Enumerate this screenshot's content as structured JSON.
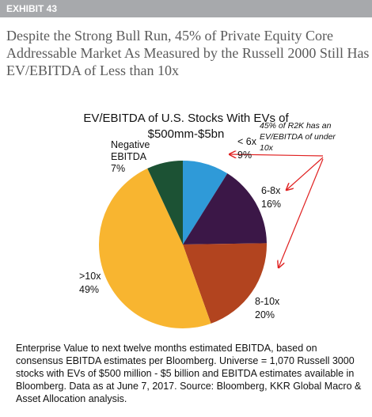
{
  "exhibit": "EXHIBIT 43",
  "headline": "Despite the Strong Bull Run, 45% of Private Equity Core Addressable Market As Measured by the Russell 2000 Still Has EV/EBITDA of Less than 10x",
  "chart_data": {
    "type": "pie",
    "title": "EV/EBITDA of U.S. Stocks With EVs of $500mm-$5bn",
    "categories": [
      "< 6x",
      "6-8x",
      "8-10x",
      ">10x",
      "Negative EBITDA"
    ],
    "values": [
      9,
      16,
      20,
      49,
      7
    ],
    "value_labels": [
      "9%",
      "16%",
      "20%",
      "49%",
      "7%"
    ],
    "colors": [
      "#2f9ad8",
      "#3b1747",
      "#b2441f",
      "#f8b530",
      "#1c5234"
    ],
    "annotation": "45% of R2K has an EV/EBITDA of under 10x"
  },
  "footnote": "Enterprise Value to next twelve months estimated EBITDA, based on consensus EBITDA estimates per Bloomberg. Universe = 1,070 Russell 3000 stocks with EVs of $500 million - $5 billion and EBITDA estimates available in Bloomberg. Data as at June 7, 2017. Source: Bloomberg, KKR Global Macro & Asset Allocation analysis."
}
